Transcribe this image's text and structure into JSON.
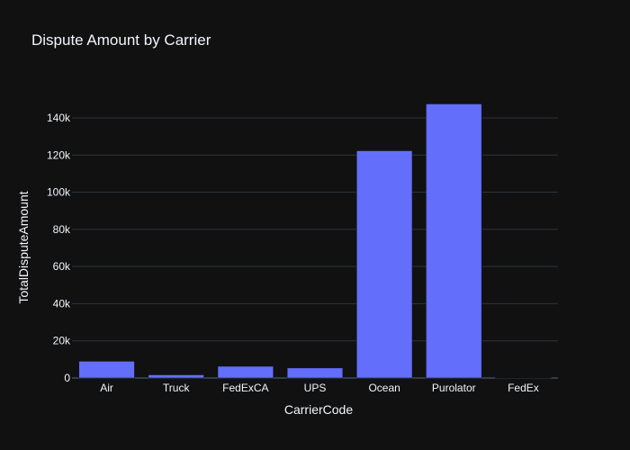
{
  "chart_data": {
    "type": "bar",
    "title": "Dispute Amount by Carrier",
    "xlabel": "CarrierCode",
    "ylabel": "TotalDisputeAmount",
    "categories": [
      "Air",
      "Truck",
      "FedExCA",
      "UPS",
      "Ocean",
      "Purolator",
      "FedEx"
    ],
    "values": [
      9000,
      1700,
      6300,
      5400,
      122300,
      147500,
      150
    ],
    "ylim": [
      0,
      155000
    ],
    "yticks": [
      0,
      20000,
      40000,
      60000,
      80000,
      100000,
      120000,
      140000
    ],
    "ytick_labels": [
      "0",
      "20k",
      "40k",
      "60k",
      "80k",
      "100k",
      "120k",
      "140k"
    ],
    "grid": true,
    "legend": "none",
    "colors": {
      "background": "#111111",
      "bar": "#636efa",
      "grid": "#283442",
      "text": "#f2f5fa"
    }
  }
}
